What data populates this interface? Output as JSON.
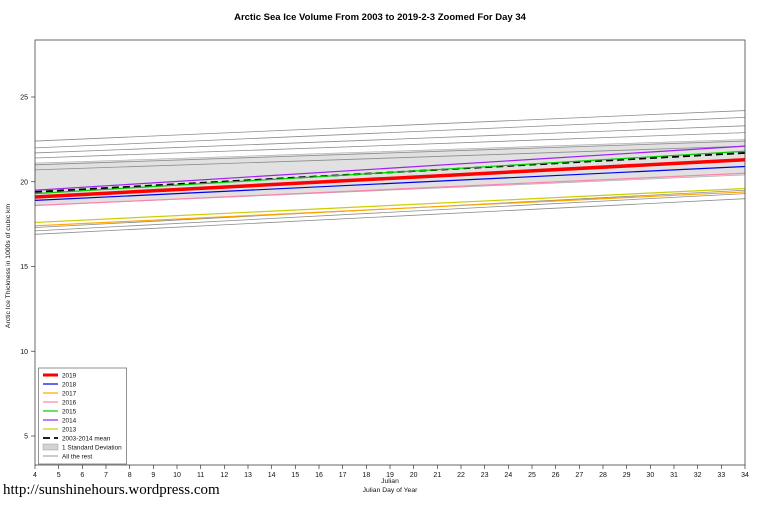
{
  "page": {
    "footer_url": "http://sunshinehours.wordpress.com"
  },
  "chart_data": {
    "type": "line",
    "title": "Arctic Sea Ice Volume From 2003 to 2019-2-3 Zoomed For Day 34",
    "xlabel_line1": "Julian",
    "xlabel_line2": "Julian Day of Year",
    "ylabel": "Arctic Ice Thickness in 1000s of cubic km",
    "x": [
      4,
      34
    ],
    "xticks": [
      4,
      5,
      6,
      7,
      8,
      9,
      10,
      11,
      12,
      13,
      14,
      15,
      16,
      17,
      18,
      19,
      20,
      21,
      22,
      23,
      24,
      25,
      26,
      27,
      28,
      29,
      30,
      31,
      32,
      33,
      34
    ],
    "yticks": [
      5,
      10,
      15,
      20,
      25
    ],
    "ylim": [
      3.3,
      28.4
    ],
    "grid": false,
    "legend_position": "bottom-left",
    "series": [
      {
        "label": "2019",
        "color": "#FF0000",
        "width": 3.5,
        "dash": null,
        "values": [
          19.1,
          21.3
        ]
      },
      {
        "label": "2018",
        "color": "#0000EE",
        "width": 1.2,
        "dash": null,
        "values": [
          18.9,
          20.9
        ]
      },
      {
        "label": "2017",
        "color": "#FFA500",
        "width": 1.2,
        "dash": null,
        "values": [
          17.4,
          19.4
        ]
      },
      {
        "label": "2016",
        "color": "#FF82AB",
        "width": 1.2,
        "dash": null,
        "values": [
          18.6,
          20.5
        ]
      },
      {
        "label": "2015",
        "color": "#00CD00",
        "width": 1.2,
        "dash": null,
        "values": [
          19.3,
          21.8
        ]
      },
      {
        "label": "2014",
        "color": "#A020F0",
        "width": 1.2,
        "dash": null,
        "values": [
          19.5,
          22.1
        ]
      },
      {
        "label": "2013",
        "color": "#CDCD00",
        "width": 1.2,
        "dash": null,
        "values": [
          17.6,
          19.6
        ]
      },
      {
        "label": "2003-2014 mean",
        "color": "#000000",
        "width": 1.8,
        "dash": "7,4",
        "values": [
          19.4,
          21.7
        ]
      }
    ],
    "band": {
      "label": "1 Standard Deviation",
      "color": "#C8C8C8",
      "opacity": 0.55,
      "lower": [
        18.6,
        20.4
      ],
      "upper": [
        21.1,
        22.5
      ]
    },
    "rest": {
      "label": "All the rest",
      "color": "#8C8C8C",
      "width": 0.8,
      "lines": [
        [
          22.4,
          24.2
        ],
        [
          22.0,
          23.8
        ],
        [
          21.7,
          23.3
        ],
        [
          21.4,
          22.9
        ],
        [
          21.0,
          22.4
        ],
        [
          20.7,
          22.1
        ],
        [
          17.3,
          19.5
        ],
        [
          17.1,
          19.3
        ],
        [
          16.9,
          19.0
        ]
      ]
    }
  }
}
